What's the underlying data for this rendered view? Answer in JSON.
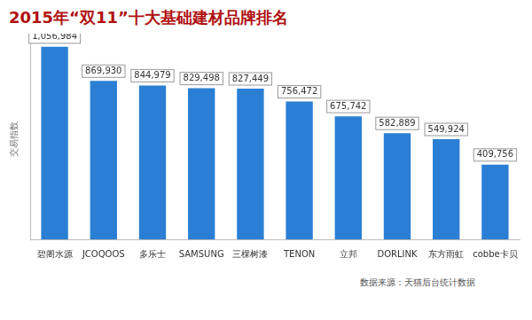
{
  "chart_data": {
    "type": "bar",
    "title": "2015年“双11”十大基础建材品牌排名",
    "ylabel": "交易指数",
    "annotation": "数据来源：天猫后台统计数据",
    "categories": [
      "碧阁水源",
      "JCOQOOS",
      "多乐士",
      "SAMSUNG",
      "三棵树漆",
      "TENON",
      "立邦",
      "DORLINK",
      "东方雨虹",
      "cobbe卡贝"
    ],
    "values": [
      1056984,
      869930,
      844979,
      829498,
      827449,
      756472,
      675742,
      582889,
      549924,
      409756
    ],
    "value_labels": [
      "1,056,984",
      "869,930",
      "844,979",
      "829,498",
      "827,449",
      "756,472",
      "675,742",
      "582,889",
      "549,924",
      "409,756"
    ],
    "color": "#2a7fd4",
    "ylim": [
      0,
      1100000
    ],
    "grid": false,
    "data_labels": true,
    "tick_labels": "x"
  }
}
